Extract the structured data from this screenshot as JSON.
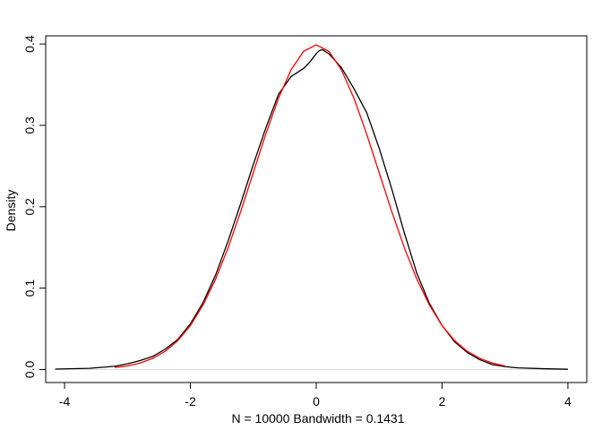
{
  "chart_data": {
    "type": "line",
    "title": "",
    "xlabel": "N = 10000   Bandwidth = 0.1431",
    "ylabel": "Density",
    "xlim": [
      -4.3,
      4.3
    ],
    "ylim": [
      -0.016,
      0.41
    ],
    "xticks": [
      -4,
      -2,
      0,
      2,
      4
    ],
    "yticks": [
      0.0,
      0.1,
      0.2,
      0.3,
      0.4
    ],
    "xtick_labels": [
      "-4",
      "-2",
      "0",
      "2",
      "4"
    ],
    "ytick_labels": [
      "0.0",
      "0.1",
      "0.2",
      "0.3",
      "0.4"
    ],
    "grid": false,
    "baseline": {
      "y": 0,
      "color": "#dddddd"
    },
    "series": [
      {
        "name": "",
        "color": "#000000",
        "x": [
          -4.15,
          -3.6,
          -3.2,
          -3.0,
          -2.8,
          -2.6,
          -2.4,
          -2.2,
          -2.0,
          -1.8,
          -1.6,
          -1.4,
          -1.2,
          -1.0,
          -0.8,
          -0.6,
          -0.4,
          -0.2,
          -0.1,
          0.0,
          0.05,
          0.1,
          0.2,
          0.4,
          0.6,
          0.8,
          1.0,
          1.2,
          1.4,
          1.6,
          1.8,
          2.0,
          2.2,
          2.4,
          2.6,
          2.8,
          3.0,
          3.2,
          3.6,
          4.0
        ],
        "y": [
          0.0005,
          0.0015,
          0.004,
          0.007,
          0.011,
          0.016,
          0.025,
          0.037,
          0.056,
          0.082,
          0.116,
          0.158,
          0.204,
          0.252,
          0.297,
          0.338,
          0.36,
          0.37,
          0.378,
          0.388,
          0.392,
          0.393,
          0.388,
          0.371,
          0.345,
          0.316,
          0.272,
          0.222,
          0.168,
          0.118,
          0.081,
          0.054,
          0.034,
          0.021,
          0.012,
          0.006,
          0.0035,
          0.002,
          0.001,
          0.0003
        ]
      },
      {
        "name": "",
        "color": "#ff0000",
        "x": [
          -3.2,
          -3.0,
          -2.8,
          -2.6,
          -2.4,
          -2.2,
          -2.0,
          -1.8,
          -1.6,
          -1.4,
          -1.2,
          -1.0,
          -0.8,
          -0.6,
          -0.4,
          -0.2,
          0.0,
          0.2,
          0.4,
          0.6,
          0.8,
          1.0,
          1.2,
          1.4,
          1.6,
          1.8,
          2.0,
          2.2,
          2.4,
          2.6,
          2.8,
          3.0
        ],
        "y": [
          0.0024,
          0.0044,
          0.0079,
          0.0136,
          0.0224,
          0.0355,
          0.054,
          0.079,
          0.1109,
          0.1497,
          0.1942,
          0.242,
          0.2897,
          0.3332,
          0.3683,
          0.391,
          0.3989,
          0.391,
          0.3683,
          0.3332,
          0.2897,
          0.242,
          0.1942,
          0.1497,
          0.1109,
          0.079,
          0.054,
          0.0355,
          0.0224,
          0.0136,
          0.0079,
          0.0044
        ]
      }
    ]
  }
}
